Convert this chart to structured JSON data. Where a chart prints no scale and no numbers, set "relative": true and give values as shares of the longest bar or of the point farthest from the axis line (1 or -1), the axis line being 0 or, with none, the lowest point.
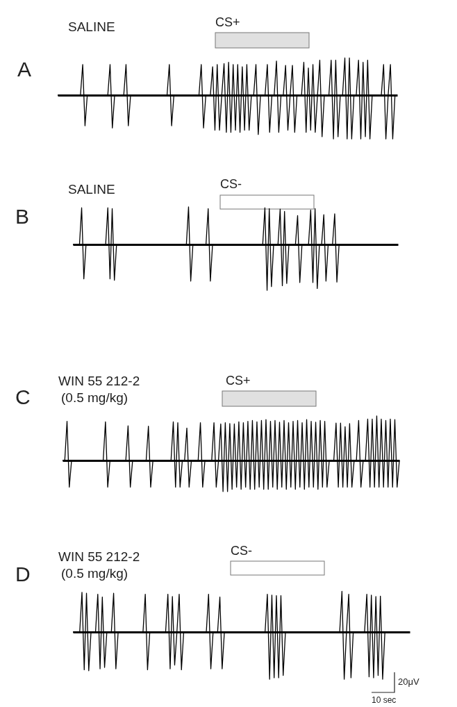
{
  "chart_data": [
    {
      "type": "line",
      "relative": true,
      "title": "A",
      "subtitle": "SALINE",
      "annotations": [
        "CS+"
      ],
      "categories": [
        null,
        null,
        null,
        null,
        null,
        null,
        null,
        null,
        null,
        null,
        null,
        null,
        null,
        null,
        null,
        null,
        null,
        null,
        null,
        null,
        null,
        null,
        null,
        null,
        null,
        null,
        null,
        null,
        null,
        null,
        null,
        null,
        null,
        null,
        null,
        null,
        null,
        null,
        null,
        null,
        null,
        null,
        null,
        null,
        null,
        null,
        null,
        null,
        null,
        null,
        null,
        null,
        null,
        null,
        null,
        null,
        null,
        null,
        null,
        null,
        null,
        null,
        null,
        null,
        null,
        null,
        null,
        null,
        null,
        null,
        null,
        null,
        null,
        null,
        null,
        null,
        null,
        null,
        null,
        null,
        null,
        null,
        null,
        null,
        null,
        null,
        null,
        null,
        null,
        null,
        null,
        null,
        null,
        null,
        null,
        null,
        null,
        null,
        null,
        null,
        null,
        null,
        null,
        null,
        null,
        null,
        null,
        null,
        null,
        null,
        null,
        null,
        null,
        null,
        null,
        null,
        null,
        null,
        null,
        null,
        null,
        null,
        null,
        null,
        null,
        null,
        null,
        null,
        null,
        null,
        null,
        null,
        null,
        null,
        null,
        null,
        null,
        null,
        null,
        null,
        null,
        null,
        null,
        null,
        null,
        null,
        null,
        null,
        null,
        null
      ],
      "series": [
        {
          "color": "#000000",
          "values": [
            0,
            0,
            0,
            0,
            0,
            0,
            0,
            0,
            0,
            0,
            0,
            0.7,
            -0.7,
            0,
            0,
            0,
            0,
            0,
            0,
            0,
            0,
            0,
            0,
            0.7,
            -0.75,
            0,
            0,
            0,
            0,
            0,
            0.7,
            -0.7,
            0,
            0,
            0,
            0,
            0,
            0,
            0,
            0,
            0,
            0,
            0,
            0,
            0,
            0,
            0,
            0,
            0,
            0.7,
            -0.7,
            0,
            0,
            0,
            0,
            0,
            0,
            0,
            0,
            0,
            0,
            0,
            0,
            0.7,
            -0.75,
            0,
            0,
            0,
            0.65,
            -0.8,
            0.7,
            -0.8,
            0,
            0.72,
            -0.85,
            0.75,
            -0.85,
            0.7,
            -0.8,
            0.7,
            -0.85,
            0.65,
            -0.8,
            0.7,
            -0.8,
            0,
            0,
            0.7,
            -0.9,
            0,
            0,
            0,
            0.7,
            -0.85,
            0,
            0,
            0.78,
            -0.85,
            0,
            0,
            0.68,
            -0.8,
            0,
            0.68,
            -0.85,
            0,
            0,
            0,
            0.75,
            -0.85,
            0.62,
            -0.8,
            0.7,
            -0.85,
            0,
            0.8,
            -0.95,
            0,
            0,
            0,
            0.8,
            -1,
            0.8,
            -0.95,
            0,
            0,
            0.85,
            -1,
            0.85,
            -1,
            0,
            0,
            0.8,
            -1,
            0.75,
            -0.95,
            0.8,
            -1,
            0,
            0,
            0,
            0,
            0,
            0.7,
            -1,
            0,
            0.7,
            -1,
            0,
            0
          ]
        }
      ]
    },
    {
      "type": "line",
      "relative": true,
      "title": "B",
      "subtitle": "SALINE",
      "annotations": [
        "CS-"
      ],
      "categories": [
        null,
        null,
        null,
        null,
        null,
        null,
        null,
        null,
        null,
        null,
        null,
        null,
        null,
        null,
        null,
        null,
        null,
        null,
        null,
        null,
        null,
        null,
        null,
        null,
        null,
        null,
        null,
        null,
        null,
        null,
        null,
        null,
        null,
        null,
        null,
        null,
        null,
        null,
        null,
        null,
        null,
        null,
        null,
        null,
        null,
        null,
        null,
        null,
        null,
        null,
        null,
        null,
        null,
        null,
        null,
        null,
        null,
        null,
        null,
        null,
        null,
        null,
        null,
        null,
        null,
        null,
        null,
        null,
        null,
        null,
        null,
        null,
        null,
        null,
        null,
        null,
        null,
        null,
        null,
        null,
        null,
        null,
        null,
        null,
        null,
        null,
        null,
        null,
        null,
        null,
        null,
        null,
        null,
        null,
        null,
        null,
        null,
        null,
        null,
        null,
        null,
        null,
        null,
        null,
        null,
        null,
        null,
        null,
        null,
        null,
        null,
        null,
        null,
        null,
        null,
        null,
        null,
        null,
        null,
        null,
        null,
        null,
        null,
        null,
        null,
        null,
        null,
        null,
        null,
        null,
        null,
        null,
        null,
        null,
        null,
        null,
        null,
        null,
        null,
        null,
        null,
        null,
        null,
        null,
        null,
        null,
        null,
        null,
        null,
        null
      ],
      "series": [
        {
          "color": "#000000",
          "values": [
            0,
            0,
            0,
            0,
            0.8,
            -0.75,
            0,
            0,
            0,
            0,
            0,
            0,
            0,
            0,
            0,
            0,
            0.8,
            -0.75,
            0.78,
            -0.78,
            0,
            0,
            0,
            0,
            0,
            0,
            0,
            0,
            0,
            0,
            0,
            0,
            0,
            0,
            0,
            0,
            0,
            0,
            0,
            0,
            0,
            0,
            0,
            0,
            0,
            0,
            0,
            0,
            0,
            0,
            0,
            0,
            0,
            0.82,
            -0.8,
            0,
            0,
            0,
            0,
            0,
            0,
            0,
            0.78,
            -0.8,
            0,
            0,
            0,
            0,
            0,
            0,
            0,
            0,
            0,
            0,
            0,
            0,
            0,
            0,
            0,
            0,
            0,
            0,
            0,
            0,
            0,
            0,
            0,
            0,
            0.8,
            -1,
            0.78,
            -0.92,
            0,
            0,
            0,
            0.77,
            -0.9,
            0.72,
            -0.85,
            0,
            0,
            0,
            0,
            0.63,
            -0.83,
            0,
            0,
            0,
            0,
            0.75,
            -0.83,
            0.78,
            -0.96,
            0,
            0,
            0.65,
            -0.8,
            0,
            0,
            0,
            0.67,
            -0.82,
            0,
            0,
            0,
            0,
            0,
            0,
            0,
            0,
            0,
            0,
            0,
            0,
            0,
            0,
            0,
            0,
            0,
            0,
            0,
            0,
            0,
            0,
            0,
            0,
            0,
            0,
            0,
            0
          ]
        }
      ]
    },
    {
      "type": "line",
      "relative": true,
      "title": "C",
      "subtitle": "WIN 55 212-2\n(0.5 mg/kg)",
      "annotations": [
        "CS+"
      ],
      "categories": [
        null,
        null,
        null,
        null,
        null,
        null,
        null,
        null,
        null,
        null,
        null,
        null,
        null,
        null,
        null,
        null,
        null,
        null,
        null,
        null,
        null,
        null,
        null,
        null,
        null,
        null,
        null,
        null,
        null,
        null,
        null,
        null,
        null,
        null,
        null,
        null,
        null,
        null,
        null,
        null,
        null,
        null,
        null,
        null,
        null,
        null,
        null,
        null,
        null,
        null,
        null,
        null,
        null,
        null,
        null,
        null,
        null,
        null,
        null,
        null,
        null,
        null,
        null,
        null,
        null,
        null,
        null,
        null,
        null,
        null,
        null,
        null,
        null,
        null,
        null,
        null,
        null,
        null,
        null,
        null,
        null,
        null,
        null,
        null,
        null,
        null,
        null,
        null,
        null,
        null,
        null,
        null,
        null,
        null,
        null,
        null,
        null,
        null,
        null,
        null,
        null,
        null,
        null,
        null,
        null,
        null,
        null,
        null,
        null,
        null,
        null,
        null,
        null,
        null,
        null,
        null,
        null,
        null,
        null,
        null,
        null,
        null,
        null,
        null,
        null,
        null,
        null,
        null,
        null,
        null,
        null,
        null,
        null,
        null,
        null,
        null,
        null,
        null,
        null,
        null,
        null,
        null,
        null,
        null,
        null,
        null,
        null,
        null,
        null,
        null
      ],
      "series": [
        {
          "color": "#000000",
          "values": [
            0,
            0,
            0.88,
            -0.6,
            0,
            0,
            0,
            0,
            0,
            0,
            0,
            0,
            0,
            0,
            0,
            0,
            0,
            0,
            0,
            0.87,
            -0.6,
            0,
            0,
            0,
            0,
            0,
            0,
            0,
            0,
            0.78,
            -0.6,
            0,
            0,
            0,
            0,
            0,
            0,
            0,
            0.77,
            -0.6,
            0,
            0,
            0,
            0,
            0,
            0,
            0,
            0,
            0,
            0.87,
            -0.6,
            0.85,
            -0.6,
            0,
            0,
            0.73,
            -0.6,
            0,
            0,
            0,
            0,
            0.85,
            -0.6,
            0,
            0,
            0,
            0,
            0.85,
            -0.6,
            0,
            0.82,
            -0.7,
            0.85,
            -0.7,
            0.83,
            -0.65,
            0.82,
            -0.6,
            0.87,
            -0.65,
            0.85,
            -0.6,
            0.88,
            -0.65,
            0.9,
            -0.65,
            0.87,
            -0.6,
            0.9,
            -0.65,
            0.92,
            -0.65,
            0.88,
            -0.6,
            0.9,
            -0.65,
            0.86,
            -0.6,
            0.9,
            -0.65,
            0.85,
            -0.6,
            0.88,
            -0.65,
            0.9,
            -0.6,
            0.85,
            -0.65,
            0.92,
            -0.6,
            0.88,
            -0.6,
            0.86,
            -0.65,
            0.9,
            -0.6,
            0.88,
            -0.6,
            0,
            0,
            0,
            0.84,
            -0.6,
            0.84,
            -0.6,
            0.76,
            -0.6,
            0.83,
            -0.6,
            0,
            0,
            0.9,
            -0.6,
            0,
            0,
            0.93,
            -0.6,
            0.93,
            -0.6,
            1,
            -0.6,
            0.93,
            -0.6,
            0.9,
            -0.6,
            0.93,
            -0.6,
            0.92,
            -0.6,
            0
          ]
        }
      ]
    },
    {
      "type": "line",
      "relative": true,
      "title": "D",
      "subtitle": "WIN 55 212-2\n(0.5 mg/kg)",
      "annotations": [
        "CS-",
        "20μV",
        "10 sec"
      ],
      "categories": [
        null,
        null,
        null,
        null,
        null,
        null,
        null,
        null,
        null,
        null,
        null,
        null,
        null,
        null,
        null,
        null,
        null,
        null,
        null,
        null,
        null,
        null,
        null,
        null,
        null,
        null,
        null,
        null,
        null,
        null,
        null,
        null,
        null,
        null,
        null,
        null,
        null,
        null,
        null,
        null,
        null,
        null,
        null,
        null,
        null,
        null,
        null,
        null,
        null,
        null,
        null,
        null,
        null,
        null,
        null,
        null,
        null,
        null,
        null,
        null,
        null,
        null,
        null,
        null,
        null,
        null,
        null,
        null,
        null,
        null,
        null,
        null,
        null,
        null,
        null,
        null,
        null,
        null,
        null,
        null,
        null,
        null,
        null,
        null,
        null,
        null,
        null,
        null,
        null,
        null,
        null,
        null,
        null,
        null,
        null,
        null,
        null,
        null,
        null,
        null,
        null,
        null,
        null,
        null,
        null,
        null,
        null,
        null,
        null,
        null,
        null,
        null,
        null,
        null,
        null,
        null,
        null,
        null,
        null,
        null,
        null,
        null,
        null,
        null,
        null,
        null,
        null,
        null,
        null,
        null,
        null,
        null,
        null,
        null,
        null,
        null,
        null,
        null,
        null,
        null,
        null,
        null,
        null,
        null,
        null,
        null,
        null,
        null,
        null,
        null
      ],
      "series": [
        {
          "color": "#000000",
          "values": [
            0,
            0,
            0,
            0,
            0.84,
            -0.8,
            0.82,
            -0.82,
            0,
            0,
            0,
            0.8,
            -0.78,
            0.74,
            -0.75,
            0,
            0,
            0,
            0.82,
            -0.78,
            0,
            0,
            0,
            0,
            0,
            0,
            0,
            0,
            0,
            0,
            0,
            0,
            0.8,
            -0.8,
            0,
            0,
            0,
            0,
            0,
            0,
            0,
            0,
            0.8,
            -0.78,
            0.75,
            -0.7,
            0,
            0.8,
            -0.8,
            0,
            0,
            0,
            0,
            0,
            0,
            0,
            0,
            0,
            0,
            0,
            0.8,
            -0.78,
            0,
            0,
            0,
            0.74,
            -0.78,
            0,
            0,
            0,
            0,
            0,
            0,
            0,
            0,
            0,
            0,
            0,
            0,
            0,
            0,
            0,
            0,
            0,
            0,
            0,
            0.8,
            -1,
            0.78,
            -0.97,
            0.77,
            -0.97,
            0.77,
            -0.92,
            0,
            0,
            0,
            0,
            0,
            0,
            0,
            0,
            0,
            0,
            0,
            0,
            0,
            0,
            0,
            0,
            0,
            0,
            0,
            0,
            0,
            0,
            0,
            0,
            0,
            0.86,
            -1,
            0,
            0.8,
            -0.97,
            0,
            0,
            0,
            0,
            0,
            0,
            0.8,
            -0.95,
            0.78,
            -0.97,
            0.75,
            -0.92,
            0.76,
            -1,
            0,
            0,
            0,
            0,
            0,
            0,
            0,
            0,
            0,
            0,
            0,
            0
          ]
        }
      ]
    }
  ]
}
